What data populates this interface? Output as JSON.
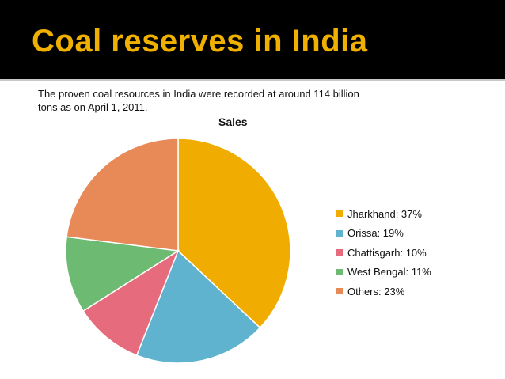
{
  "slide": {
    "title": "Coal reserves in India",
    "intro": "The proven coal resources in India were recorded at around 114 billion tons as on April 1, 2011."
  },
  "colors": {
    "title_bar": "#000000",
    "title_text": "#f0b000"
  },
  "chart_data": {
    "type": "pie",
    "title": "Sales",
    "legend_position": "right",
    "slices": [
      {
        "label": "Jharkhand",
        "value": 37,
        "legend": "Jharkhand: 37%",
        "color": "#f0ac00"
      },
      {
        "label": "Orissa",
        "value": 19,
        "legend": "Orissa: 19%",
        "color": "#5fb3cf"
      },
      {
        "label": "Chattisgarh",
        "value": 10,
        "legend": "Chattisgarh: 10%",
        "color": "#e66c7d"
      },
      {
        "label": "West Bengal",
        "value": 11,
        "legend": "West Bengal: 11%",
        "color": "#6dba72"
      },
      {
        "label": "Others",
        "value": 23,
        "legend": "Others: 23%",
        "color": "#e88a57"
      }
    ]
  }
}
